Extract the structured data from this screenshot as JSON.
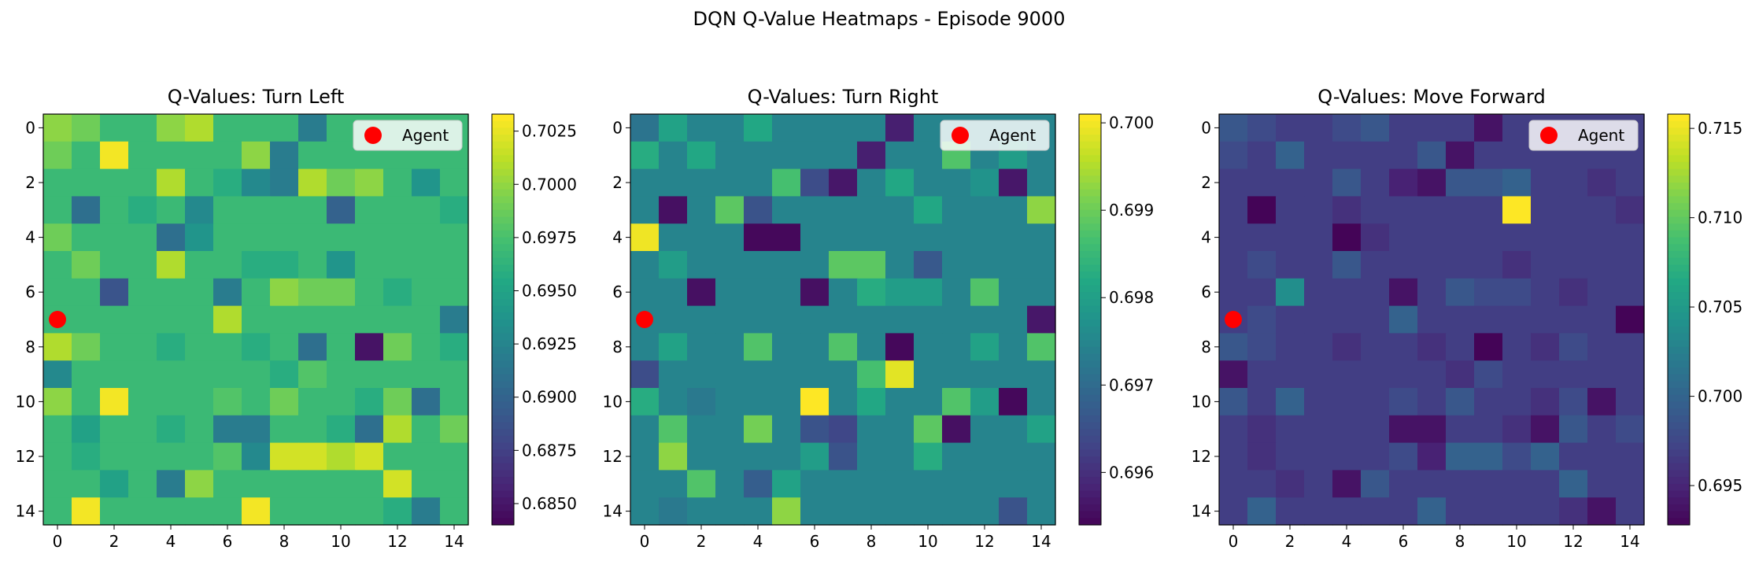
{
  "chart_data": {
    "type": "heatmap",
    "suptitle": "DQN Q-Value Heatmaps - Episode 9000",
    "colormap": "viridis",
    "grid": false,
    "legend_placement": "top-right",
    "agent": {
      "label": "Agent",
      "row": 7,
      "col": 0,
      "color": "#ff0000"
    },
    "x_ticks": [
      "0",
      "2",
      "4",
      "6",
      "8",
      "10",
      "12",
      "14"
    ],
    "y_ticks": [
      "0",
      "2",
      "4",
      "6",
      "8",
      "10",
      "12",
      "14"
    ],
    "panels": [
      {
        "title": "Q-Values: Turn Left",
        "vmin": 0.684,
        "vmax": 0.7033,
        "colorbar_ticks": [
          {
            "value": 0.685,
            "label": "0.6850"
          },
          {
            "value": 0.6875,
            "label": "0.6875"
          },
          {
            "value": 0.69,
            "label": "0.6900"
          },
          {
            "value": 0.6925,
            "label": "0.6925"
          },
          {
            "value": 0.695,
            "label": "0.6950"
          },
          {
            "value": 0.6975,
            "label": "0.6975"
          },
          {
            "value": 0.7,
            "label": "0.7000"
          },
          {
            "value": 0.7025,
            "label": "0.7025"
          }
        ],
        "values": [
          [
            0.7,
            0.699,
            0.697,
            0.697,
            0.7,
            0.701,
            0.697,
            0.697,
            0.697,
            0.692,
            0.697,
            0.697,
            0.697,
            0.697,
            0.697
          ],
          [
            0.699,
            0.697,
            0.703,
            0.697,
            0.697,
            0.697,
            0.697,
            0.7,
            0.692,
            0.697,
            0.697,
            0.697,
            0.697,
            0.697,
            0.697
          ],
          [
            0.697,
            0.697,
            0.697,
            0.697,
            0.701,
            0.697,
            0.696,
            0.693,
            0.692,
            0.701,
            0.699,
            0.7,
            0.697,
            0.694,
            0.697
          ],
          [
            0.697,
            0.691,
            0.697,
            0.696,
            0.697,
            0.693,
            0.697,
            0.697,
            0.697,
            0.697,
            0.69,
            0.697,
            0.697,
            0.697,
            0.696
          ],
          [
            0.699,
            0.697,
            0.697,
            0.697,
            0.691,
            0.694,
            0.697,
            0.697,
            0.697,
            0.697,
            0.697,
            0.697,
            0.697,
            0.697,
            0.697
          ],
          [
            0.697,
            0.699,
            0.697,
            0.697,
            0.701,
            0.697,
            0.697,
            0.696,
            0.696,
            0.697,
            0.694,
            0.697,
            0.697,
            0.697,
            0.697
          ],
          [
            0.697,
            0.697,
            0.689,
            0.697,
            0.697,
            0.697,
            0.692,
            0.697,
            0.7,
            0.699,
            0.699,
            0.697,
            0.696,
            0.697,
            0.697
          ],
          [
            0.697,
            0.697,
            0.697,
            0.697,
            0.697,
            0.697,
            0.701,
            0.697,
            0.697,
            0.697,
            0.697,
            0.697,
            0.697,
            0.697,
            0.692
          ],
          [
            0.701,
            0.699,
            0.697,
            0.697,
            0.696,
            0.697,
            0.697,
            0.696,
            0.697,
            0.691,
            0.697,
            0.685,
            0.699,
            0.697,
            0.696
          ],
          [
            0.693,
            0.697,
            0.697,
            0.697,
            0.697,
            0.697,
            0.697,
            0.697,
            0.696,
            0.698,
            0.697,
            0.697,
            0.697,
            0.697,
            0.697
          ],
          [
            0.7,
            0.697,
            0.703,
            0.697,
            0.697,
            0.697,
            0.698,
            0.697,
            0.699,
            0.697,
            0.697,
            0.696,
            0.699,
            0.691,
            0.697
          ],
          [
            0.697,
            0.695,
            0.697,
            0.697,
            0.696,
            0.697,
            0.692,
            0.692,
            0.697,
            0.697,
            0.696,
            0.691,
            0.701,
            0.697,
            0.699
          ],
          [
            0.697,
            0.696,
            0.697,
            0.697,
            0.697,
            0.697,
            0.698,
            0.693,
            0.702,
            0.702,
            0.701,
            0.702,
            0.697,
            0.697,
            0.697
          ],
          [
            0.697,
            0.697,
            0.695,
            0.697,
            0.692,
            0.7,
            0.697,
            0.697,
            0.697,
            0.697,
            0.697,
            0.697,
            0.702,
            0.697,
            0.697
          ],
          [
            0.697,
            0.703,
            0.697,
            0.697,
            0.697,
            0.697,
            0.697,
            0.703,
            0.697,
            0.697,
            0.697,
            0.697,
            0.696,
            0.692,
            0.697
          ]
        ]
      },
      {
        "title": "Q-Values: Turn Right",
        "vmin": 0.6954,
        "vmax": 0.7001,
        "colorbar_ticks": [
          {
            "value": 0.696,
            "label": "0.696"
          },
          {
            "value": 0.697,
            "label": "0.697"
          },
          {
            "value": 0.698,
            "label": "0.698"
          },
          {
            "value": 0.699,
            "label": "0.699"
          },
          {
            "value": 0.7,
            "label": "0.700"
          }
        ],
        "values": [
          [
            0.6972,
            0.6981,
            0.6975,
            0.6975,
            0.6982,
            0.6975,
            0.6975,
            0.6975,
            0.6975,
            0.6958,
            0.6975,
            0.6975,
            0.6975,
            0.6975,
            0.6975
          ],
          [
            0.6983,
            0.6975,
            0.6982,
            0.6975,
            0.6975,
            0.6975,
            0.6975,
            0.6975,
            0.6958,
            0.6975,
            0.6975,
            0.6988,
            0.6975,
            0.698,
            0.6975
          ],
          [
            0.6975,
            0.6975,
            0.6975,
            0.6975,
            0.6975,
            0.6987,
            0.6965,
            0.6957,
            0.6975,
            0.6982,
            0.6975,
            0.6975,
            0.6978,
            0.6957,
            0.6975
          ],
          [
            0.6975,
            0.6956,
            0.6975,
            0.6989,
            0.6966,
            0.6975,
            0.6975,
            0.6975,
            0.6975,
            0.6975,
            0.6982,
            0.6975,
            0.6975,
            0.6975,
            0.6993
          ],
          [
            0.7,
            0.6975,
            0.6975,
            0.6975,
            0.6955,
            0.6955,
            0.6975,
            0.6975,
            0.6975,
            0.6975,
            0.6975,
            0.6975,
            0.6975,
            0.6975,
            0.6975
          ],
          [
            0.6975,
            0.698,
            0.6975,
            0.6975,
            0.6975,
            0.6975,
            0.6975,
            0.6989,
            0.6989,
            0.6975,
            0.6967,
            0.6975,
            0.6975,
            0.6975,
            0.6975
          ],
          [
            0.6975,
            0.6975,
            0.6956,
            0.6975,
            0.6975,
            0.6975,
            0.6956,
            0.6975,
            0.6983,
            0.698,
            0.698,
            0.6975,
            0.6988,
            0.6975,
            0.6975
          ],
          [
            0.6975,
            0.6975,
            0.6975,
            0.6975,
            0.6975,
            0.6975,
            0.6975,
            0.6975,
            0.6975,
            0.6975,
            0.6975,
            0.6975,
            0.6975,
            0.6975,
            0.6957
          ],
          [
            0.6975,
            0.6981,
            0.6975,
            0.6975,
            0.6988,
            0.6975,
            0.6975,
            0.6988,
            0.6975,
            0.6955,
            0.6975,
            0.6975,
            0.6981,
            0.6975,
            0.6988
          ],
          [
            0.6965,
            0.6975,
            0.6975,
            0.6975,
            0.6975,
            0.6975,
            0.6975,
            0.6975,
            0.6987,
            0.6999,
            0.6975,
            0.6975,
            0.6975,
            0.6975,
            0.6975
          ],
          [
            0.6983,
            0.6975,
            0.6973,
            0.6975,
            0.6975,
            0.6975,
            0.7001,
            0.6975,
            0.6982,
            0.6975,
            0.6975,
            0.6988,
            0.698,
            0.6955,
            0.6975
          ],
          [
            0.6975,
            0.6988,
            0.6975,
            0.6975,
            0.6991,
            0.6975,
            0.6966,
            0.6964,
            0.6975,
            0.6975,
            0.6989,
            0.6956,
            0.6975,
            0.6975,
            0.6981
          ],
          [
            0.6975,
            0.6993,
            0.6975,
            0.6975,
            0.6975,
            0.6975,
            0.698,
            0.6966,
            0.6975,
            0.6975,
            0.6983,
            0.6975,
            0.6975,
            0.6975,
            0.6975
          ],
          [
            0.6975,
            0.6975,
            0.6988,
            0.6975,
            0.6968,
            0.6981,
            0.6975,
            0.6975,
            0.6975,
            0.6975,
            0.6975,
            0.6975,
            0.6975,
            0.6975,
            0.6975
          ],
          [
            0.6975,
            0.6973,
            0.6975,
            0.6975,
            0.6975,
            0.6993,
            0.6975,
            0.6975,
            0.6975,
            0.6975,
            0.6975,
            0.6975,
            0.6975,
            0.6966,
            0.6975
          ]
        ]
      },
      {
        "title": "Q-Values: Move Forward",
        "vmin": 0.6928,
        "vmax": 0.7158,
        "colorbar_ticks": [
          {
            "value": 0.695,
            "label": "0.695"
          },
          {
            "value": 0.7,
            "label": "0.700"
          },
          {
            "value": 0.705,
            "label": "0.705"
          },
          {
            "value": 0.71,
            "label": "0.710"
          },
          {
            "value": 0.715,
            "label": "0.715"
          }
        ],
        "values": [
          [
            0.699,
            0.698,
            0.697,
            0.697,
            0.698,
            0.699,
            0.697,
            0.697,
            0.697,
            0.694,
            0.697,
            0.697,
            0.697,
            0.697,
            0.697
          ],
          [
            0.698,
            0.697,
            0.7,
            0.697,
            0.697,
            0.697,
            0.697,
            0.699,
            0.694,
            0.697,
            0.697,
            0.697,
            0.697,
            0.697,
            0.697
          ],
          [
            0.697,
            0.697,
            0.697,
            0.697,
            0.699,
            0.697,
            0.695,
            0.694,
            0.699,
            0.699,
            0.7,
            0.697,
            0.697,
            0.696,
            0.697
          ],
          [
            0.697,
            0.693,
            0.697,
            0.697,
            0.696,
            0.697,
            0.697,
            0.697,
            0.697,
            0.697,
            0.716,
            0.697,
            0.697,
            0.697,
            0.696
          ],
          [
            0.697,
            0.697,
            0.697,
            0.697,
            0.693,
            0.696,
            0.697,
            0.697,
            0.697,
            0.697,
            0.697,
            0.697,
            0.697,
            0.697,
            0.697
          ],
          [
            0.697,
            0.698,
            0.697,
            0.697,
            0.699,
            0.697,
            0.697,
            0.697,
            0.697,
            0.697,
            0.696,
            0.697,
            0.697,
            0.697,
            0.697
          ],
          [
            0.697,
            0.697,
            0.704,
            0.697,
            0.697,
            0.697,
            0.694,
            0.697,
            0.699,
            0.698,
            0.698,
            0.697,
            0.696,
            0.697,
            0.697
          ],
          [
            0.697,
            0.698,
            0.697,
            0.697,
            0.697,
            0.697,
            0.7,
            0.697,
            0.697,
            0.697,
            0.697,
            0.697,
            0.697,
            0.697,
            0.693
          ],
          [
            0.699,
            0.698,
            0.697,
            0.697,
            0.696,
            0.697,
            0.697,
            0.696,
            0.697,
            0.693,
            0.697,
            0.696,
            0.698,
            0.697,
            0.697
          ],
          [
            0.694,
            0.697,
            0.697,
            0.697,
            0.697,
            0.697,
            0.697,
            0.697,
            0.696,
            0.698,
            0.697,
            0.697,
            0.697,
            0.697,
            0.697
          ],
          [
            0.699,
            0.697,
            0.7,
            0.697,
            0.697,
            0.697,
            0.698,
            0.697,
            0.699,
            0.697,
            0.697,
            0.696,
            0.698,
            0.694,
            0.697
          ],
          [
            0.697,
            0.696,
            0.697,
            0.697,
            0.697,
            0.697,
            0.694,
            0.694,
            0.697,
            0.697,
            0.696,
            0.694,
            0.699,
            0.697,
            0.698
          ],
          [
            0.697,
            0.696,
            0.697,
            0.697,
            0.697,
            0.697,
            0.698,
            0.695,
            0.7,
            0.7,
            0.698,
            0.7,
            0.697,
            0.697,
            0.697
          ],
          [
            0.697,
            0.697,
            0.696,
            0.697,
            0.694,
            0.699,
            0.697,
            0.697,
            0.697,
            0.697,
            0.697,
            0.697,
            0.7,
            0.697,
            0.697
          ],
          [
            0.697,
            0.7,
            0.697,
            0.697,
            0.697,
            0.697,
            0.697,
            0.7,
            0.697,
            0.697,
            0.697,
            0.697,
            0.696,
            0.694,
            0.697
          ]
        ]
      }
    ]
  }
}
